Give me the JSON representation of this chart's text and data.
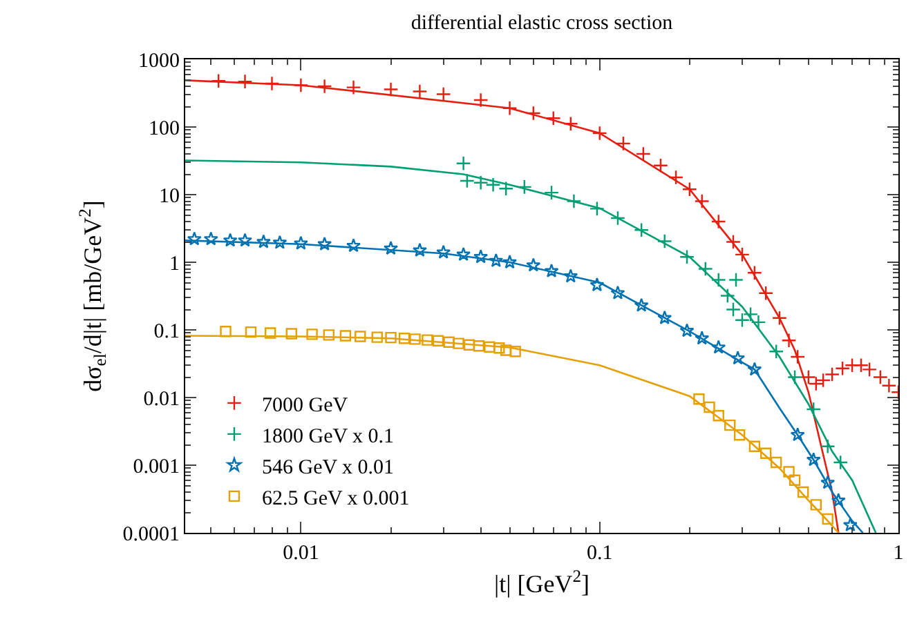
{
  "chart_data": {
    "type": "scatter",
    "title": "differential elastic cross section",
    "xlabel": "|t| [GeV$^{2}$]",
    "ylabel": "dσ$_{el}$/d|t| [mb/GeV$^{2}$]",
    "log": "xy",
    "grid": false,
    "legend": "bottom left",
    "line_style": "solid",
    "xlim": [
      0.0041,
      1
    ],
    "xticks": [
      0.01,
      0.1,
      1
    ],
    "ylim": [
      0.0001,
      1000
    ],
    "yticks": [
      0.0001,
      0.001,
      0.01,
      0.1,
      1,
      10,
      100,
      1000
    ],
    "series": [
      {
        "type": "line",
        "color": "#e51e10",
        "x": [
          0.0041,
          0.01,
          0.05,
          0.1,
          0.2,
          0.3,
          0.4,
          0.45,
          0.5,
          0.55,
          0.6,
          0.63
        ],
        "values": [
          490,
          415,
          190,
          81,
          12,
          1.3,
          0.15,
          0.05,
          0.012,
          0.002,
          0.0004,
          0.0001
        ]
      },
      {
        "type": "line",
        "color": "#009e73",
        "x": [
          0.0041,
          0.01,
          0.02,
          0.035,
          0.05,
          0.1,
          0.2,
          0.3,
          0.4,
          0.5,
          0.6,
          0.7,
          0.84
        ],
        "values": [
          32,
          30,
          26,
          20,
          14,
          6.3,
          1.2,
          0.22,
          0.04,
          0.008,
          0.0016,
          0.0006,
          0.0001
        ]
      },
      {
        "type": "line",
        "color": "#0072b2",
        "x": [
          0.0041,
          0.01,
          0.03,
          0.05,
          0.1,
          0.2,
          0.3,
          0.33,
          0.4,
          0.46,
          0.52,
          0.6,
          0.7,
          0.76
        ],
        "values": [
          2.1,
          1.85,
          1.35,
          1.0,
          0.5,
          0.095,
          0.033,
          0.026,
          0.007,
          0.0028,
          0.0012,
          0.0004,
          0.00015,
          0.0001
        ]
      },
      {
        "type": "line",
        "color": "#e69f00",
        "x": [
          0.0041,
          0.01,
          0.02,
          0.05,
          0.1,
          0.2,
          0.3,
          0.4,
          0.5,
          0.58,
          0.63
        ],
        "values": [
          0.082,
          0.08,
          0.075,
          0.055,
          0.03,
          0.0105,
          0.0028,
          0.0009,
          0.0003,
          0.00015,
          0.0001
        ]
      },
      {
        "name": "7000 GeV",
        "marker": "cross",
        "color": "#e51e10",
        "x": [
          0.0053,
          0.0065,
          0.008,
          0.01,
          0.012,
          0.015,
          0.02,
          0.025,
          0.03,
          0.04,
          0.05,
          0.06,
          0.07,
          0.08,
          0.1,
          0.12,
          0.14,
          0.16,
          0.18,
          0.2,
          0.22,
          0.25,
          0.28,
          0.3,
          0.33,
          0.36,
          0.4,
          0.43,
          0.46,
          0.5,
          0.53,
          0.56,
          0.6,
          0.65,
          0.7,
          0.75,
          0.8,
          0.87,
          0.93,
          1.0
        ],
        "values": [
          480,
          470,
          440,
          415,
          400,
          385,
          360,
          335,
          305,
          250,
          190,
          160,
          135,
          112,
          81,
          57,
          40,
          27,
          18,
          12,
          8,
          4,
          2,
          1.3,
          0.7,
          0.35,
          0.15,
          0.07,
          0.04,
          0.02,
          0.016,
          0.018,
          0.022,
          0.027,
          0.03,
          0.03,
          0.026,
          0.02,
          0.015,
          0.012
        ]
      },
      {
        "name": "1800 GeV x 0.1",
        "marker": "cross",
        "color": "#009e73",
        "x": [
          0.035,
          0.036,
          0.04,
          0.044,
          0.0486,
          0.056,
          0.069,
          0.082,
          0.098,
          0.115,
          0.138,
          0.165,
          0.196,
          0.226,
          0.25,
          0.268,
          0.28,
          0.286,
          0.3,
          0.32,
          0.34,
          0.39,
          0.45,
          0.52,
          0.58,
          0.64
        ],
        "values": [
          29,
          16,
          15,
          14,
          12.3,
          13,
          10.7,
          8,
          6.2,
          4.5,
          3.0,
          2.05,
          1.2,
          0.8,
          0.55,
          0.32,
          0.2,
          0.55,
          0.14,
          0.17,
          0.13,
          0.048,
          0.02,
          0.0067,
          0.0019,
          0.0011
        ]
      },
      {
        "name": "546 GeV x 0.01",
        "marker": "star",
        "color": "#0072b2",
        "x": [
          0.0044,
          0.005,
          0.0058,
          0.0065,
          0.0075,
          0.0085,
          0.01,
          0.012,
          0.015,
          0.02,
          0.025,
          0.03,
          0.035,
          0.04,
          0.045,
          0.05,
          0.06,
          0.069,
          0.08,
          0.098,
          0.115,
          0.138,
          0.165,
          0.196,
          0.22,
          0.25,
          0.29,
          0.33,
          0.46,
          0.52,
          0.58,
          0.63,
          0.69
        ],
        "values": [
          2.2,
          2.2,
          2.1,
          2.1,
          2.0,
          1.95,
          1.9,
          1.85,
          1.75,
          1.6,
          1.5,
          1.4,
          1.3,
          1.2,
          1.05,
          1.0,
          0.9,
          0.74,
          0.62,
          0.46,
          0.35,
          0.23,
          0.15,
          0.097,
          0.075,
          0.055,
          0.038,
          0.026,
          0.0028,
          0.0012,
          0.00055,
          0.0003,
          0.00013
        ]
      },
      {
        "name": "62.5 GeV x 0.001",
        "marker": "square",
        "color": "#e69f00",
        "x": [
          0.0056,
          0.0068,
          0.0079,
          0.0093,
          0.0109,
          0.0124,
          0.0141,
          0.0158,
          0.018,
          0.02,
          0.0222,
          0.0241,
          0.0265,
          0.0288,
          0.0313,
          0.0337,
          0.0366,
          0.0394,
          0.0428,
          0.0461,
          0.0486,
          0.0522,
          0.215,
          0.233,
          0.25,
          0.273,
          0.294,
          0.33,
          0.36,
          0.39,
          0.43,
          0.45,
          0.48,
          0.53,
          0.58
        ],
        "values": [
          0.095,
          0.093,
          0.09,
          0.088,
          0.086,
          0.084,
          0.082,
          0.08,
          0.078,
          0.077,
          0.075,
          0.073,
          0.071,
          0.069,
          0.066,
          0.063,
          0.06,
          0.058,
          0.056,
          0.054,
          0.05,
          0.048,
          0.0095,
          0.0072,
          0.0054,
          0.0039,
          0.0028,
          0.0019,
          0.0015,
          0.0011,
          0.0008,
          0.0006,
          0.0004,
          0.00026,
          0.00016
        ]
      }
    ]
  }
}
